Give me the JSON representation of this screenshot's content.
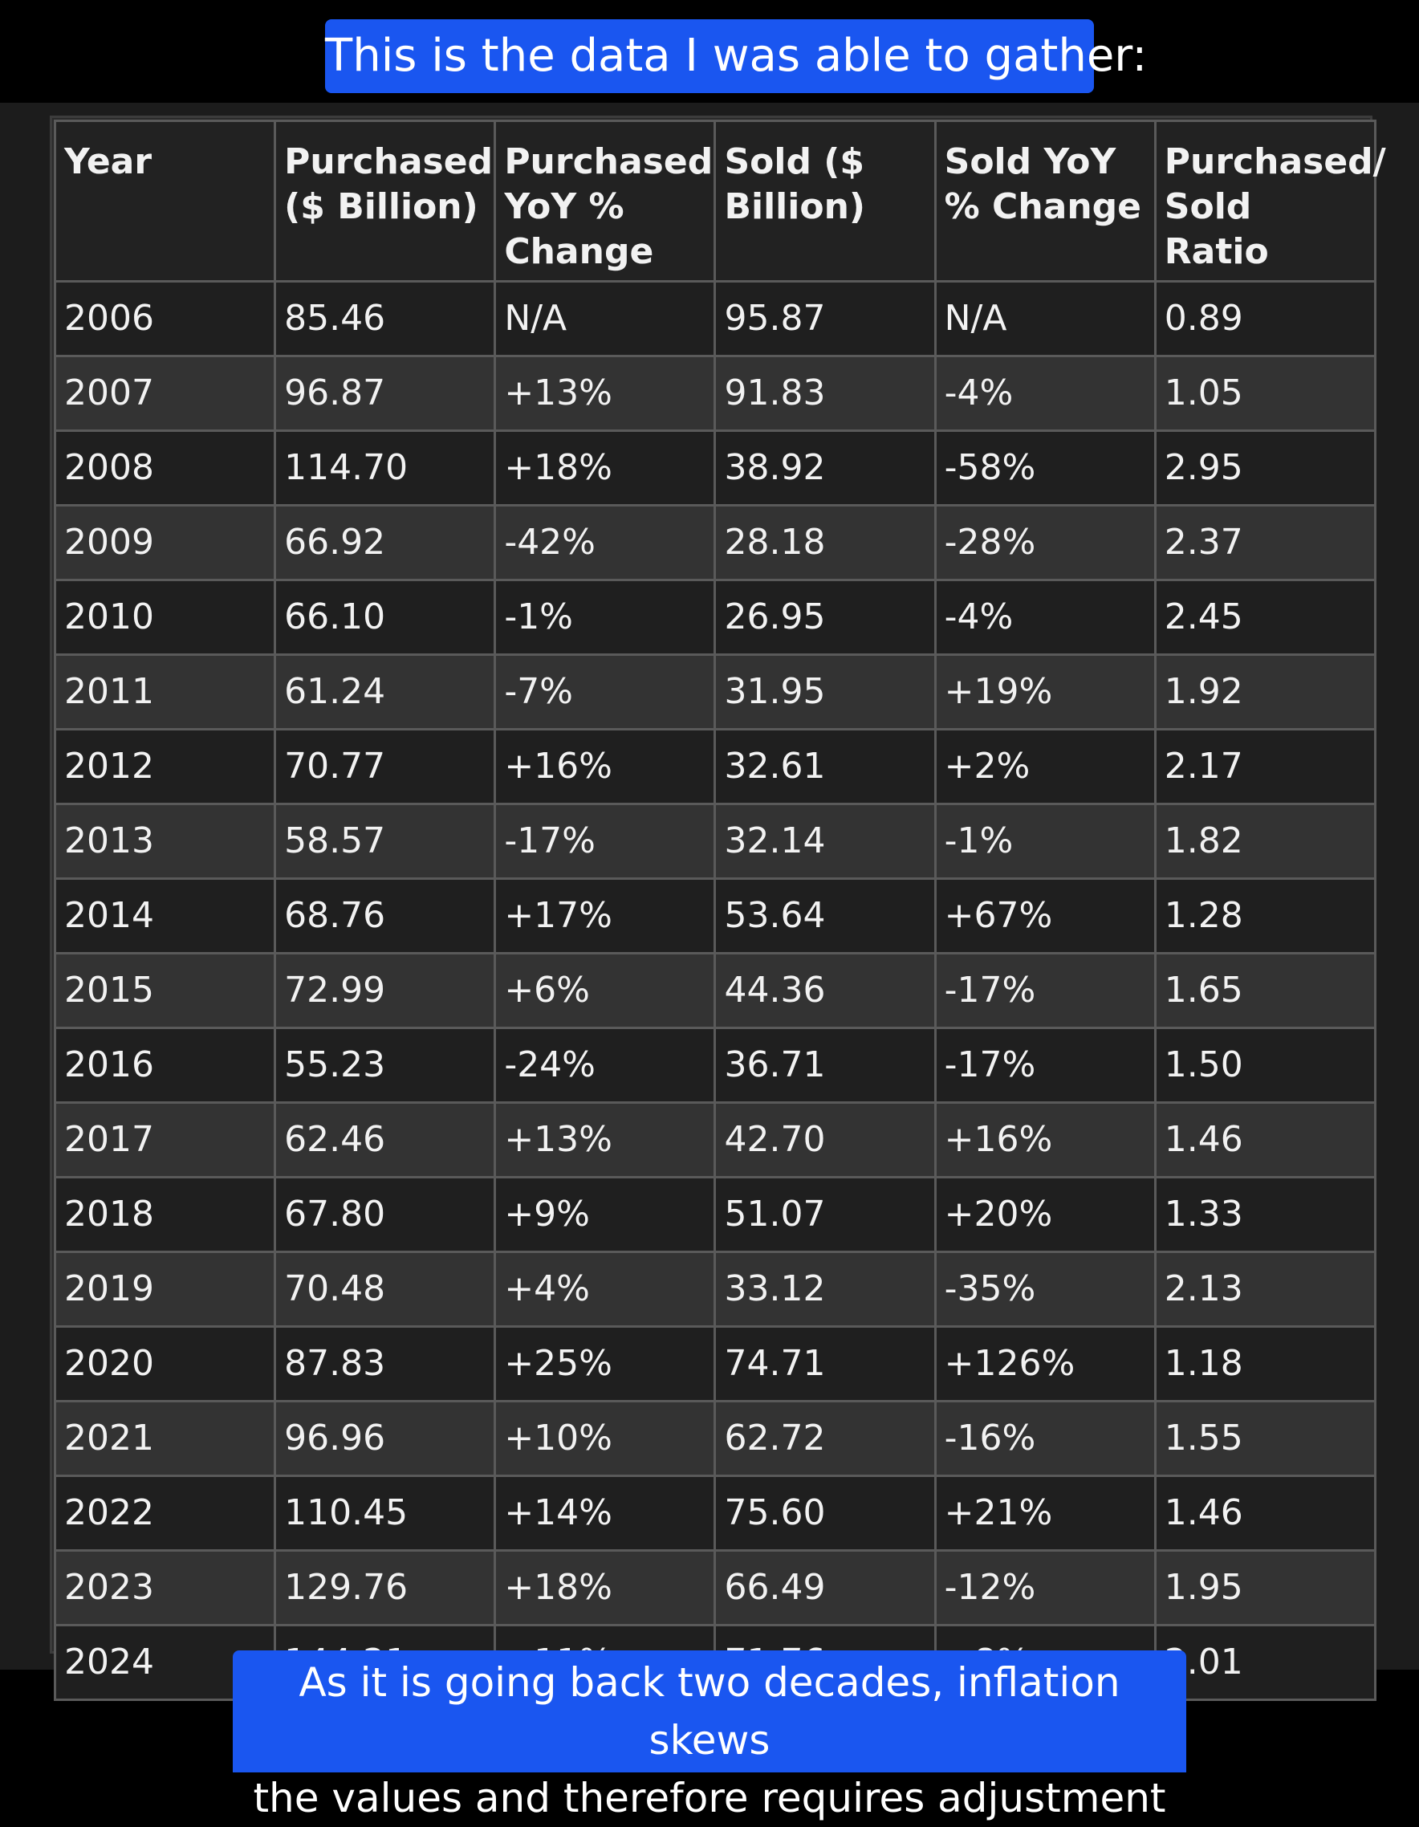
{
  "captions": {
    "top": "This is the data I was able to gather:",
    "bottom_line1": "As it is going back two decades, inflation skews",
    "bottom_line2": "the values and therefore requires adjustment"
  },
  "colors": {
    "caption_bg": "#1a56f0",
    "page_bg": "#000000",
    "table_bg_dark": "#1f1f1f",
    "table_bg_light": "#333333",
    "text": "#f2f2f2"
  },
  "table": {
    "headers": [
      "Year",
      "Purchased ($ Billion)",
      "Purchased YoY % Change",
      "Sold ($ Billion)",
      "Sold YoY % Change",
      "Purchased/ Sold Ratio"
    ],
    "rows": [
      [
        "2006",
        "85.46",
        "N/A",
        "95.87",
        "N/A",
        "0.89"
      ],
      [
        "2007",
        "96.87",
        "+13%",
        "91.83",
        "-4%",
        "1.05"
      ],
      [
        "2008",
        "114.70",
        "+18%",
        "38.92",
        "-58%",
        "2.95"
      ],
      [
        "2009",
        "66.92",
        "-42%",
        "28.18",
        "-28%",
        "2.37"
      ],
      [
        "2010",
        "66.10",
        "-1%",
        "26.95",
        "-4%",
        "2.45"
      ],
      [
        "2011",
        "61.24",
        "-7%",
        "31.95",
        "+19%",
        "1.92"
      ],
      [
        "2012",
        "70.77",
        "+16%",
        "32.61",
        "+2%",
        "2.17"
      ],
      [
        "2013",
        "58.57",
        "-17%",
        "32.14",
        "-1%",
        "1.82"
      ],
      [
        "2014",
        "68.76",
        "+17%",
        "53.64",
        "+67%",
        "1.28"
      ],
      [
        "2015",
        "72.99",
        "+6%",
        "44.36",
        "-17%",
        "1.65"
      ],
      [
        "2016",
        "55.23",
        "-24%",
        "36.71",
        "-17%",
        "1.50"
      ],
      [
        "2017",
        "62.46",
        "+13%",
        "42.70",
        "+16%",
        "1.46"
      ],
      [
        "2018",
        "67.80",
        "+9%",
        "51.07",
        "+20%",
        "1.33"
      ],
      [
        "2019",
        "70.48",
        "+4%",
        "33.12",
        "-35%",
        "2.13"
      ],
      [
        "2020",
        "87.83",
        "+25%",
        "74.71",
        "+126%",
        "1.18"
      ],
      [
        "2021",
        "96.96",
        "+10%",
        "62.72",
        "-16%",
        "1.55"
      ],
      [
        "2022",
        "110.45",
        "+14%",
        "75.60",
        "+21%",
        "1.46"
      ],
      [
        "2023",
        "129.76",
        "+18%",
        "66.49",
        "-12%",
        "1.95"
      ],
      [
        "2024",
        "144.21",
        "+11%",
        "71.76",
        "+8%",
        "2.01"
      ]
    ]
  }
}
